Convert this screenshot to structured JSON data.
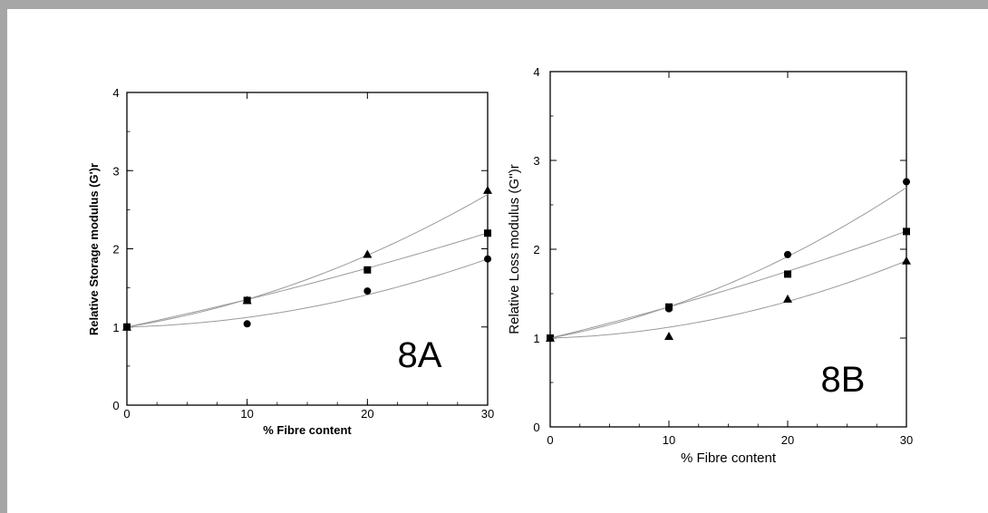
{
  "chart_data": [
    {
      "type": "scatter",
      "panel_label": "8A",
      "xlabel": "% Fibre content",
      "ylabel": "Relative Storage modulus (G')r",
      "xlim": [
        0,
        30
      ],
      "ylim": [
        0,
        4
      ],
      "xticks": [
        0,
        10,
        20,
        30
      ],
      "yticks": [
        0,
        1,
        2,
        3,
        4
      ],
      "grid": false,
      "series": [
        {
          "marker": "triangle",
          "x": [
            0,
            10,
            20,
            30
          ],
          "values": [
            1.0,
            1.34,
            1.93,
            2.75
          ],
          "fit": [
            1.0,
            0.0247,
            0.00106
          ]
        },
        {
          "marker": "square",
          "x": [
            0,
            10,
            20,
            30
          ],
          "values": [
            1.0,
            1.34,
            1.73,
            2.2
          ],
          "fit": [
            1.0,
            0.0326,
            0.00025
          ]
        },
        {
          "marker": "circle",
          "x": [
            0,
            10,
            20,
            30
          ],
          "values": [
            1.0,
            1.04,
            1.46,
            1.87
          ],
          "fit": [
            1.0,
            0.0038,
            0.00084
          ]
        }
      ]
    },
    {
      "type": "scatter",
      "panel_label": "8B",
      "xlabel": "% Fibre content",
      "ylabel": "Relative Loss modulus (G'')r",
      "xlim": [
        0,
        30
      ],
      "ylim": [
        0,
        4
      ],
      "xticks": [
        0,
        10,
        20,
        30
      ],
      "yticks": [
        0,
        1,
        2,
        3,
        4
      ],
      "grid": false,
      "series": [
        {
          "marker": "circle",
          "x": [
            0,
            10,
            20,
            30
          ],
          "values": [
            1.0,
            1.33,
            1.94,
            2.76
          ],
          "fit": [
            1.0,
            0.0247,
            0.00106
          ]
        },
        {
          "marker": "square",
          "x": [
            0,
            10,
            20,
            30
          ],
          "values": [
            1.0,
            1.35,
            1.72,
            2.2
          ],
          "fit": [
            1.0,
            0.0326,
            0.00025
          ]
        },
        {
          "marker": "triangle",
          "x": [
            0,
            10,
            20,
            30
          ],
          "values": [
            1.0,
            1.02,
            1.44,
            1.87
          ],
          "fit": [
            1.0,
            0.0038,
            0.00084
          ]
        }
      ]
    }
  ]
}
